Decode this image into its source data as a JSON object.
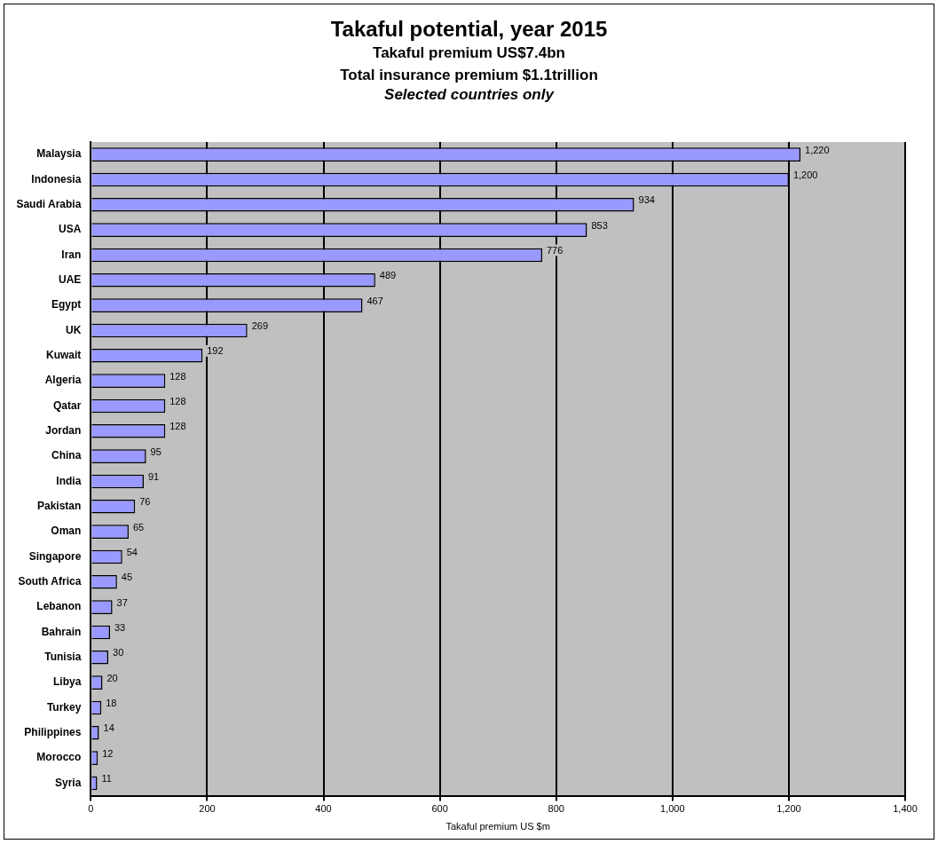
{
  "chart_data": {
    "type": "bar",
    "orientation": "horizontal",
    "title": "Takaful potential, year 2015",
    "subtitle": "Takaful premium US$7.4bn\nTotal insurance premium $1.1trillion",
    "annotations": [
      "Selected countries only"
    ],
    "xlabel": "Takaful premium US $m",
    "categories": [
      "Malaysia",
      "Indonesia",
      "Saudi Arabia",
      "USA",
      "Iran",
      "UAE",
      "Egypt",
      "UK",
      "Kuwait",
      "Algeria",
      "Qatar",
      "Jordan",
      "China",
      "India",
      "Pakistan",
      "Oman",
      "Singapore",
      "South Africa",
      "Lebanon",
      "Bahrain",
      "Tunisia",
      "Libya",
      "Turkey",
      "Philippines",
      "Morocco",
      "Syria"
    ],
    "values": [
      1220,
      1200,
      934,
      853,
      776,
      489,
      467,
      269,
      192,
      128,
      128,
      128,
      95,
      91,
      76,
      65,
      54,
      45,
      37,
      33,
      30,
      20,
      18,
      14,
      12,
      11
    ],
    "value_labels": [
      "1,220",
      "1,200",
      "934",
      "853",
      "776",
      "489",
      "467",
      "269",
      "192",
      "128",
      "128",
      "128",
      "95",
      "91",
      "76",
      "65",
      "54",
      "45",
      "37",
      "33",
      "30",
      "20",
      "18",
      "14",
      "12",
      "11"
    ],
    "color": "#9999ff",
    "xlim": [
      0,
      1400
    ],
    "xticks": [
      0,
      200,
      400,
      600,
      800,
      {
        "value": 1000,
        "label": "1,000"
      },
      {
        "value": 1200,
        "label": "1,200"
      },
      {
        "value": 1400,
        "label": "1,400"
      }
    ],
    "grid": "x",
    "legend": false
  }
}
